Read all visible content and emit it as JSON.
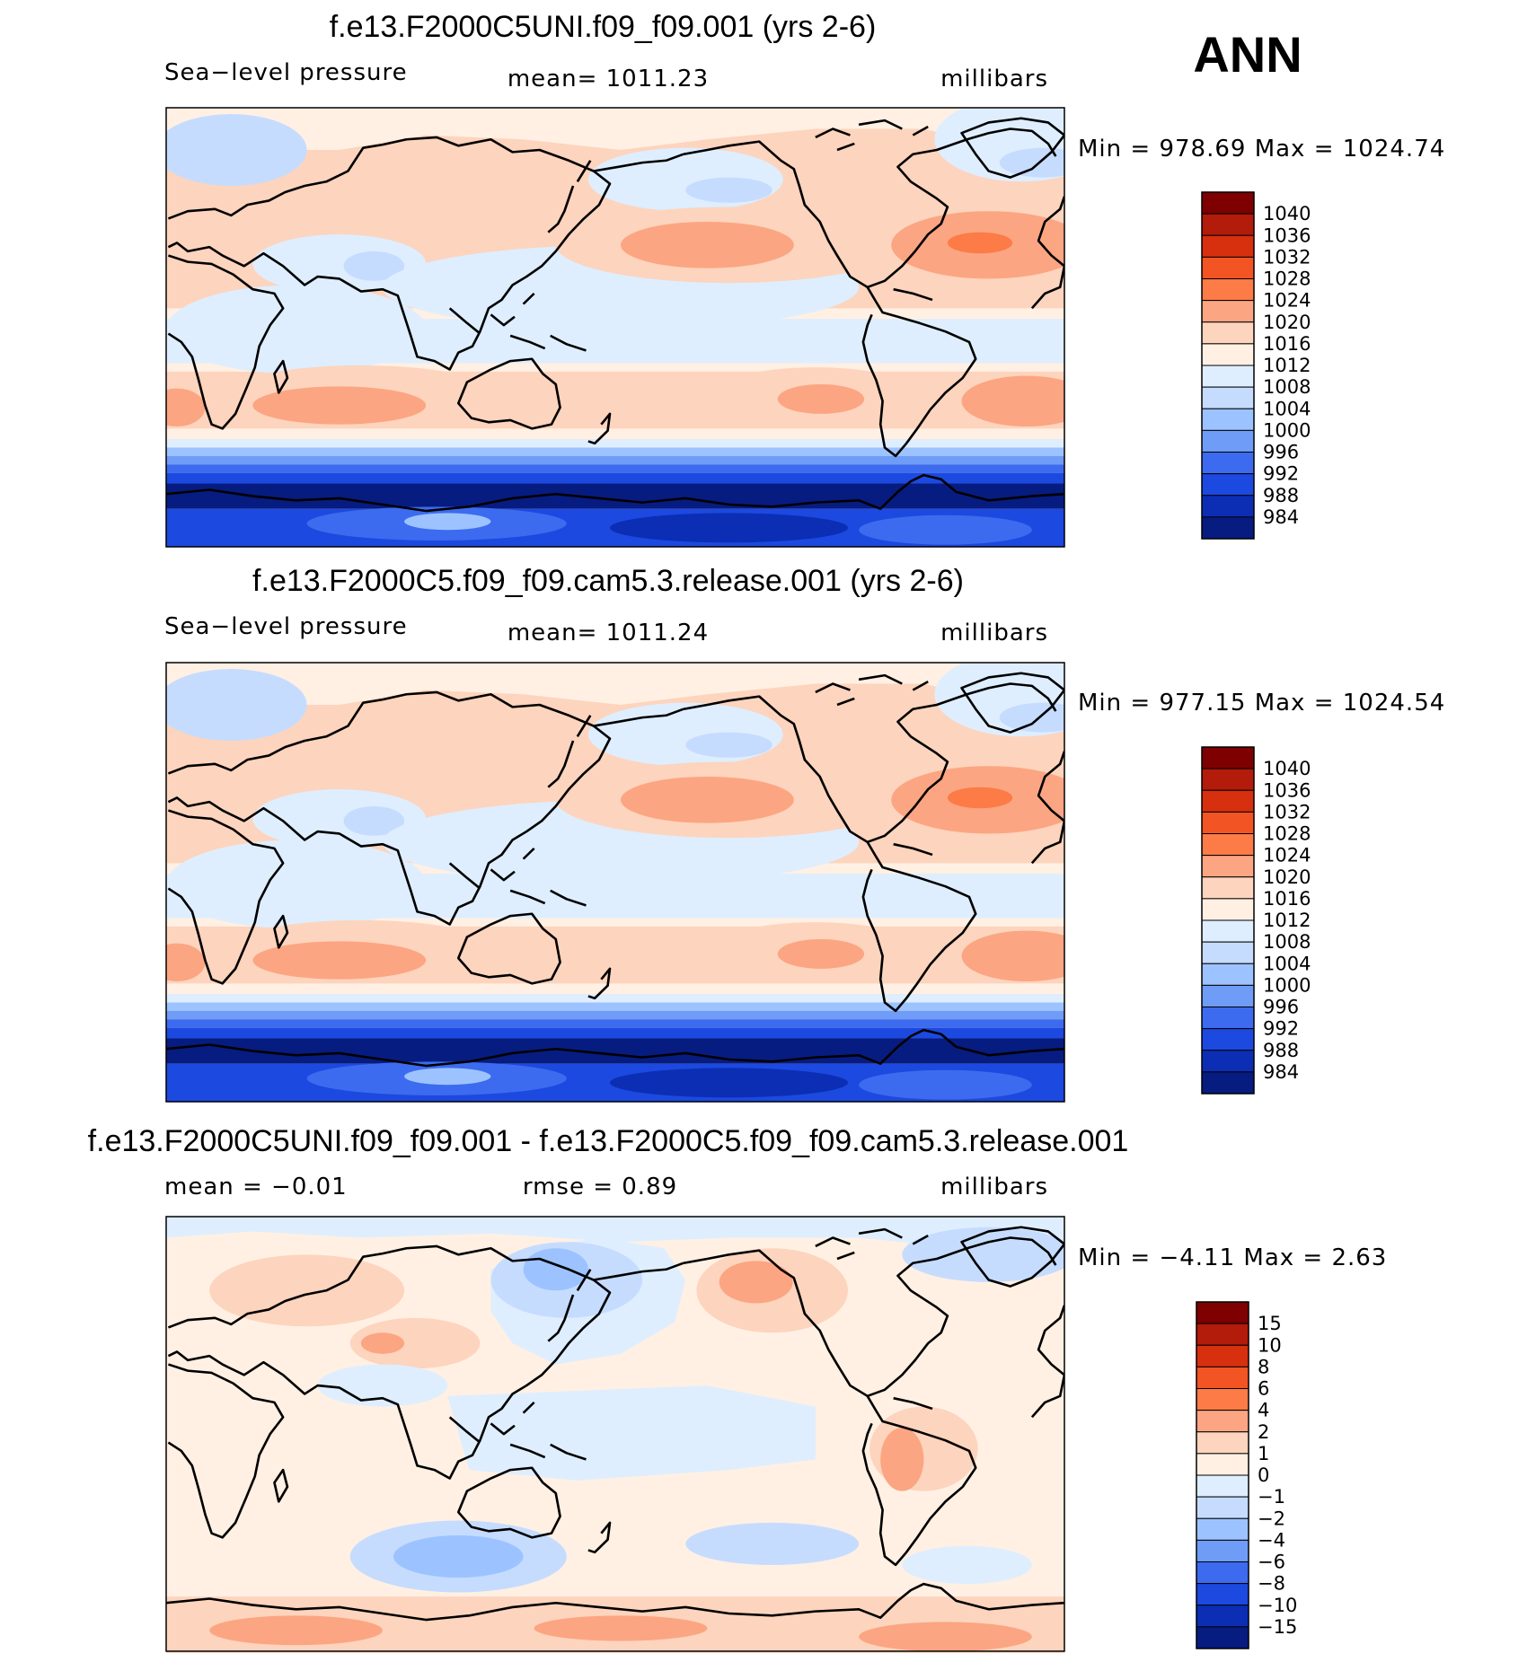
{
  "figure": {
    "season": "ANN",
    "variable_label": "Sea−level pressure",
    "units": "millibars"
  },
  "chart_data": [
    {
      "type": "heatmap",
      "title": "f.e13.F2000C5UNI.f09_f09.001 (yrs 2-6)",
      "left_label": "Sea−level pressure",
      "center_label": "mean=  1011.23",
      "right_label": "millibars",
      "minmax_label": "Min  =  978.69  Max  =  1024.74",
      "min": 978.69,
      "max": 1024.74,
      "mean": 1011.23,
      "colorbar": {
        "levels": [
          "1040",
          "1036",
          "1032",
          "1028",
          "1024",
          "1020",
          "1016",
          "1012",
          "1008",
          "1004",
          "1000",
          "996",
          "992",
          "988",
          "984"
        ],
        "colors": [
          "#7f0000",
          "#b31b0a",
          "#d7300f",
          "#f25424",
          "#fc7b46",
          "#fca582",
          "#fdd4bd",
          "#fff0e3",
          "#deeeff",
          "#c5dcff",
          "#9cc3ff",
          "#6f9cf7",
          "#3c6bef",
          "#1c49df",
          "#0b2eb5",
          "#071c80"
        ]
      }
    },
    {
      "type": "heatmap",
      "title": "f.e13.F2000C5.f09_f09.cam5.3.release.001 (yrs 2-6)",
      "left_label": "Sea−level pressure",
      "center_label": "mean=  1011.24",
      "right_label": "millibars",
      "minmax_label": "Min  =  977.15  Max  =  1024.54",
      "min": 977.15,
      "max": 1024.54,
      "mean": 1011.24,
      "colorbar": {
        "levels": [
          "1040",
          "1036",
          "1032",
          "1028",
          "1024",
          "1020",
          "1016",
          "1012",
          "1008",
          "1004",
          "1000",
          "996",
          "992",
          "988",
          "984"
        ],
        "colors": [
          "#7f0000",
          "#b31b0a",
          "#d7300f",
          "#f25424",
          "#fc7b46",
          "#fca582",
          "#fdd4bd",
          "#fff0e3",
          "#deeeff",
          "#c5dcff",
          "#9cc3ff",
          "#6f9cf7",
          "#3c6bef",
          "#1c49df",
          "#0b2eb5",
          "#071c80"
        ]
      }
    },
    {
      "type": "heatmap",
      "title": "f.e13.F2000C5UNI.f09_f09.001 - f.e13.F2000C5.f09_f09.cam5.3.release.001",
      "left_label": "mean  =    −0.01",
      "center_label": "rmse  =      0.89",
      "right_label": "millibars",
      "minmax_label": "Min  =    −4.11  Max  =      2.63",
      "min": -4.11,
      "max": 2.63,
      "mean": -0.01,
      "rmse": 0.89,
      "colorbar": {
        "levels": [
          "15",
          "10",
          "8",
          "6",
          "4",
          "2",
          "1",
          "0",
          "−1",
          "−2",
          "−4",
          "−6",
          "−8",
          "−10",
          "−15"
        ],
        "colors": [
          "#7f0000",
          "#b31b0a",
          "#d7300f",
          "#f25424",
          "#fc7b46",
          "#fca582",
          "#fdd4bd",
          "#fff0e3",
          "#deeeff",
          "#c5dcff",
          "#9cc3ff",
          "#6f9cf7",
          "#3c6bef",
          "#1c49df",
          "#0b2eb5",
          "#071c80"
        ]
      }
    }
  ]
}
